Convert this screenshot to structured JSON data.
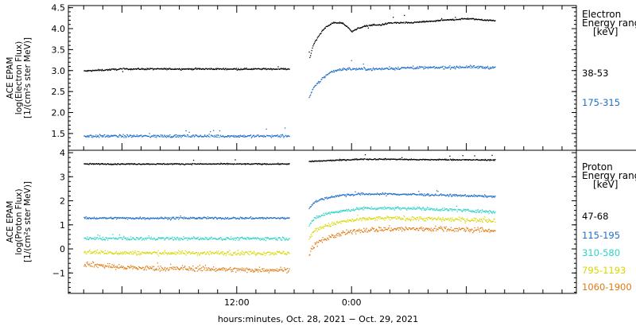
{
  "chart_data": [
    {
      "type": "scatter",
      "panel": "electron",
      "ylabel": [
        "ACE EPAM",
        "log(Electron Flux)",
        "[1/(cm²s ster MeV)]"
      ],
      "ylim": [
        1.1,
        4.55
      ],
      "yticks": [
        1.5,
        2.0,
        2.5,
        3.0,
        3.5,
        4.0,
        4.5
      ],
      "ytick_labels": [
        "1.5",
        "2.0",
        "2.5",
        "3.0",
        "3.5",
        "4.0",
        "4.5"
      ],
      "legend_title": [
        "Electron",
        "Energy ranges",
        "[keV]"
      ],
      "data_gap": [
        17.5,
        19.5
      ],
      "series": [
        {
          "name": "38-53",
          "color": "#000000",
          "x": [
            -4,
            0,
            4,
            8,
            12,
            16,
            17.5,
            19.5,
            20,
            21,
            22,
            23,
            23.5,
            24,
            25,
            26,
            27,
            28,
            30,
            33,
            36,
            39
          ],
          "y": [
            3.0,
            3.05,
            3.05,
            3.05,
            3.05,
            3.05,
            3.05,
            3.25,
            3.65,
            4.0,
            4.15,
            4.15,
            4.05,
            3.95,
            4.05,
            4.1,
            4.1,
            4.15,
            4.15,
            4.2,
            4.25,
            4.2
          ]
        },
        {
          "name": "175-315",
          "color": "#1f6fc9",
          "x": [
            -4,
            0,
            4,
            8,
            12,
            16,
            17.5,
            19.5,
            20,
            21,
            22,
            23,
            24,
            27,
            30,
            33,
            36,
            39
          ],
          "y": [
            1.45,
            1.45,
            1.45,
            1.45,
            1.45,
            1.45,
            1.45,
            2.35,
            2.6,
            2.85,
            3.0,
            3.05,
            3.05,
            3.05,
            3.08,
            3.08,
            3.1,
            3.08
          ]
        }
      ]
    },
    {
      "type": "scatter",
      "panel": "proton",
      "ylabel": [
        "ACE EPAM",
        "log(Proton Flux)",
        "[1/(cm²s ster MeV)]"
      ],
      "ylim": [
        -1.85,
        4.1
      ],
      "yticks": [
        -1,
        0,
        1,
        2,
        3,
        4
      ],
      "ytick_labels": [
        "−1",
        "0",
        "1",
        "2",
        "3",
        "4"
      ],
      "legend_title": [
        "Proton",
        "Energy ranges",
        "[keV]"
      ],
      "data_gap": [
        17.5,
        19.5
      ],
      "series": [
        {
          "name": "47-68",
          "color": "#000000",
          "x": [
            -4,
            0,
            4,
            8,
            12,
            16,
            17.5,
            19.5,
            22,
            25,
            28,
            31,
            34,
            37,
            39
          ],
          "y": [
            3.55,
            3.55,
            3.55,
            3.55,
            3.55,
            3.55,
            3.55,
            3.65,
            3.7,
            3.75,
            3.75,
            3.73,
            3.73,
            3.72,
            3.72
          ]
        },
        {
          "name": "115-195",
          "color": "#1f6fc9",
          "x": [
            -4,
            0,
            4,
            8,
            12,
            16,
            17.5,
            19.5,
            20,
            21,
            22,
            23,
            25,
            28,
            31,
            34,
            37,
            39
          ],
          "y": [
            1.3,
            1.3,
            1.3,
            1.3,
            1.3,
            1.3,
            1.3,
            1.7,
            1.95,
            2.1,
            2.2,
            2.25,
            2.3,
            2.3,
            2.28,
            2.25,
            2.22,
            2.2
          ]
        },
        {
          "name": "310-580",
          "color": "#2ed3c8",
          "x": [
            -4,
            0,
            4,
            8,
            12,
            16,
            17.5,
            19.5,
            20,
            21,
            22,
            23,
            25,
            28,
            31,
            34,
            37,
            39
          ],
          "y": [
            0.45,
            0.45,
            0.45,
            0.45,
            0.45,
            0.45,
            0.45,
            1.0,
            1.25,
            1.45,
            1.55,
            1.6,
            1.7,
            1.72,
            1.7,
            1.65,
            1.6,
            1.55
          ]
        },
        {
          "name": "795-1193",
          "color": "#d8d800",
          "x": [
            -4,
            0,
            4,
            8,
            12,
            16,
            17.5,
            19.5,
            20,
            21,
            22,
            23,
            25,
            28,
            31,
            34,
            37,
            39
          ],
          "y": [
            -0.1,
            -0.15,
            -0.15,
            -0.15,
            -0.15,
            -0.15,
            -0.15,
            0.45,
            0.75,
            0.95,
            1.05,
            1.15,
            1.25,
            1.3,
            1.28,
            1.25,
            1.22,
            1.2
          ]
        },
        {
          "name": "1060-1900",
          "color": "#e07a10",
          "x": [
            -4,
            0,
            4,
            8,
            12,
            16,
            17.5,
            19.5,
            20,
            21,
            22,
            23,
            25,
            28,
            31,
            34,
            37,
            39
          ],
          "y": [
            -0.6,
            -0.75,
            -0.8,
            -0.8,
            -0.85,
            -0.85,
            -0.85,
            -0.2,
            0.15,
            0.4,
            0.55,
            0.65,
            0.8,
            0.85,
            0.85,
            0.85,
            0.8,
            0.78
          ]
        }
      ]
    }
  ],
  "x_axis": {
    "unit": "hours since Oct. 28, 2021 00:00",
    "xlim": [
      -5.6,
      47.5
    ],
    "ticks": [
      12,
      24
    ],
    "tick_labels": [
      "12:00",
      "0:00"
    ],
    "label": "hours:minutes, Oct. 28, 2021 − Oct. 29, 2021"
  }
}
